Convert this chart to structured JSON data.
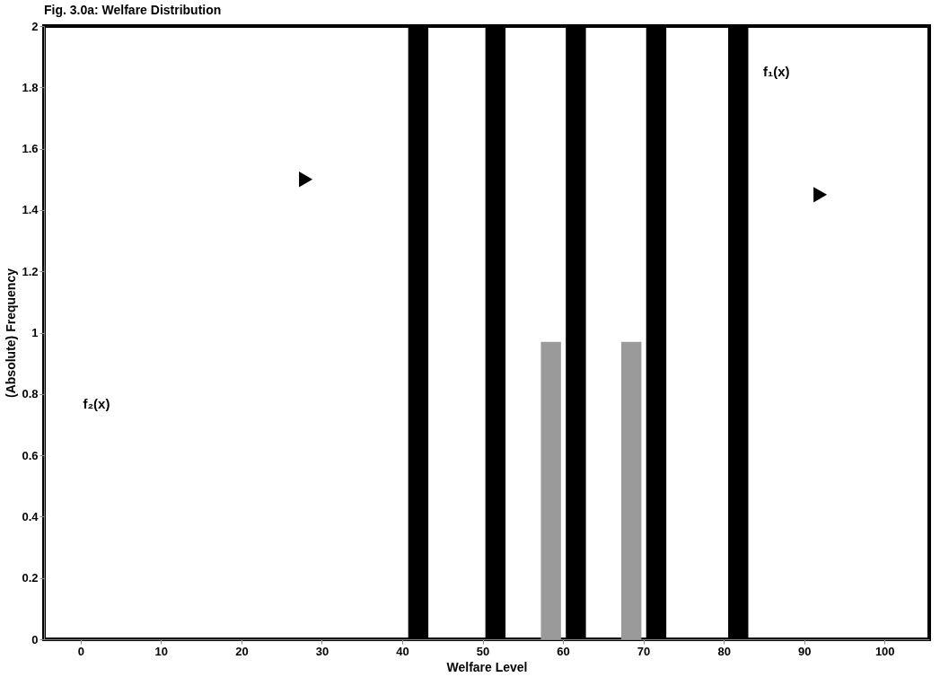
{
  "chart_data": {
    "type": "bar",
    "title": "Fig. 3.0a: Welfare Distribution",
    "xlabel": "Welfare Level",
    "ylabel": "(Absolute) Frequency",
    "xlim": [
      -4,
      105
    ],
    "xticks": [
      0,
      10,
      20,
      30,
      40,
      50,
      60,
      70,
      80,
      90,
      100
    ],
    "ylim": [
      0,
      2
    ],
    "yticks": [
      0,
      0.2,
      0.4,
      0.6,
      0.8,
      1,
      1.2,
      1.4,
      1.6,
      1.8,
      2
    ],
    "grid": false,
    "series": [
      {
        "color": "#000000",
        "x": [
          42,
          51.6,
          61.6,
          71.6,
          81.8
        ],
        "values": [
          2,
          2,
          2,
          2,
          2
        ]
      },
      {
        "color": "#9a9a9a",
        "x": [
          58.5,
          68.5
        ],
        "values": [
          0.97,
          0.97
        ]
      },
      {
        "type": "scatter",
        "marker": "triangle",
        "color": "#000000",
        "x": [
          28,
          92
        ],
        "values": [
          1.5,
          1.45
        ]
      }
    ],
    "annotations": [
      "f₁(x)",
      "f₂(x)"
    ]
  }
}
